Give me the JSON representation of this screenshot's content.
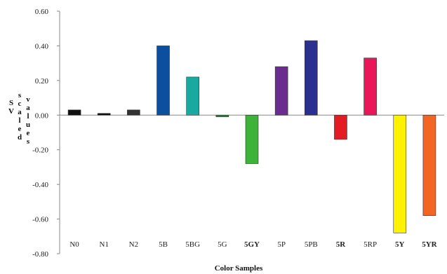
{
  "chart_data": {
    "type": "bar",
    "xlabel": "Color Samples",
    "ylabel": "SV scaled values",
    "ylabel_lines": [
      "SV",
      "scaled",
      "values"
    ],
    "ylim": [
      -0.8,
      0.6
    ],
    "yticks": [
      "0.60",
      "0.40",
      "0.20",
      "0.00",
      "-0.20",
      "-0.40",
      "-0.60",
      "-0.80"
    ],
    "ytick_values": [
      0.6,
      0.4,
      0.2,
      0.0,
      -0.2,
      -0.4,
      -0.6,
      -0.8
    ],
    "grid": false,
    "legend": "none",
    "categories": [
      "N0",
      "N1",
      "N2",
      "5B",
      "5BG",
      "5G",
      "5GY",
      "5P",
      "5PB",
      "5R",
      "5RP",
      "5Y",
      "5YR"
    ],
    "values": [
      0.03,
      0.01,
      0.03,
      0.4,
      0.22,
      -0.01,
      -0.28,
      0.28,
      0.43,
      -0.14,
      0.33,
      -0.68,
      -0.58
    ],
    "colors": [
      "#111111",
      "#111111",
      "#333333",
      "#0b4f9e",
      "#1aa9a0",
      "#2e8b3a",
      "#3db33a",
      "#6a2c8f",
      "#2b2f8f",
      "#e41b23",
      "#e9175a",
      "#fff200",
      "#f26522"
    ],
    "bold_categories": [
      "5GY",
      "5R",
      "5Y",
      "5YR"
    ]
  }
}
